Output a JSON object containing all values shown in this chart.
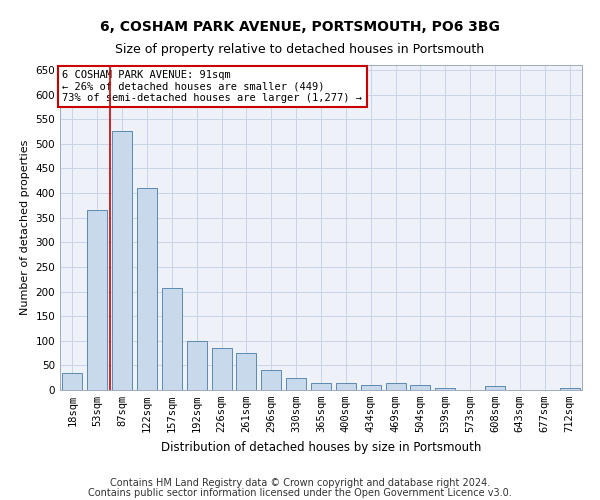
{
  "title": "6, COSHAM PARK AVENUE, PORTSMOUTH, PO6 3BG",
  "subtitle": "Size of property relative to detached houses in Portsmouth",
  "xlabel": "Distribution of detached houses by size in Portsmouth",
  "ylabel": "Number of detached properties",
  "categories": [
    "18sqm",
    "53sqm",
    "87sqm",
    "122sqm",
    "157sqm",
    "192sqm",
    "226sqm",
    "261sqm",
    "296sqm",
    "330sqm",
    "365sqm",
    "400sqm",
    "434sqm",
    "469sqm",
    "504sqm",
    "539sqm",
    "573sqm",
    "608sqm",
    "643sqm",
    "677sqm",
    "712sqm"
  ],
  "values": [
    35,
    365,
    525,
    410,
    207,
    100,
    85,
    75,
    40,
    25,
    15,
    15,
    10,
    15,
    10,
    5,
    1,
    8,
    1,
    1,
    5
  ],
  "bar_color": "#c9d9ec",
  "bar_edge_color": "#5a8ab0",
  "red_line_index": 2,
  "annotation_text": "6 COSHAM PARK AVENUE: 91sqm\n← 26% of detached houses are smaller (449)\n73% of semi-detached houses are larger (1,277) →",
  "annotation_box_facecolor": "#ffffff",
  "annotation_box_edgecolor": "#cc0000",
  "grid_color": "#c8d4e8",
  "background_color": "#eef2f8",
  "ylim": [
    0,
    660
  ],
  "yticks": [
    0,
    50,
    100,
    150,
    200,
    250,
    300,
    350,
    400,
    450,
    500,
    550,
    600,
    650
  ],
  "footer1": "Contains HM Land Registry data © Crown copyright and database right 2024.",
  "footer2": "Contains public sector information licensed under the Open Government Licence v3.0.",
  "title_fontsize": 10,
  "subtitle_fontsize": 9,
  "xlabel_fontsize": 8.5,
  "ylabel_fontsize": 8,
  "tick_fontsize": 7.5,
  "annotation_fontsize": 7.5,
  "footer_fontsize": 7
}
